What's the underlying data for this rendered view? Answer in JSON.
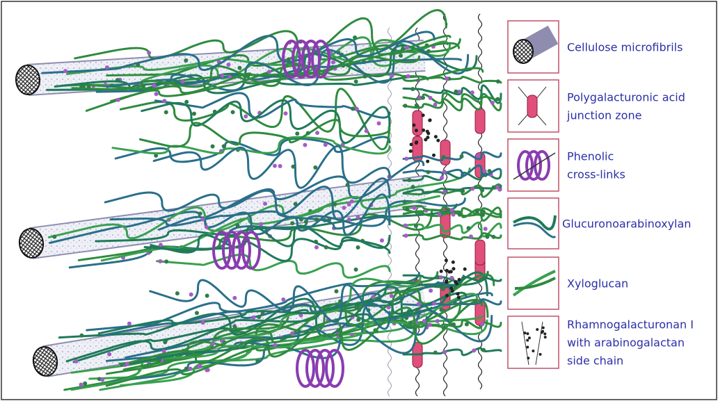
{
  "legend": {
    "items": [
      {
        "lines": [
          "Cellulose microfibrils"
        ]
      },
      {
        "lines": [
          "Polygalacturonic acid",
          "junction zone"
        ]
      },
      {
        "lines": [
          "Phenolic",
          "cross-links"
        ]
      },
      {
        "lines": [
          "Glucuronoarabinoxylan"
        ]
      },
      {
        "lines": [
          "Xyloglucan"
        ]
      },
      {
        "lines": [
          "Rhamnogalacturonan I",
          "with arabinogalactan",
          "side chain"
        ]
      }
    ]
  }
}
